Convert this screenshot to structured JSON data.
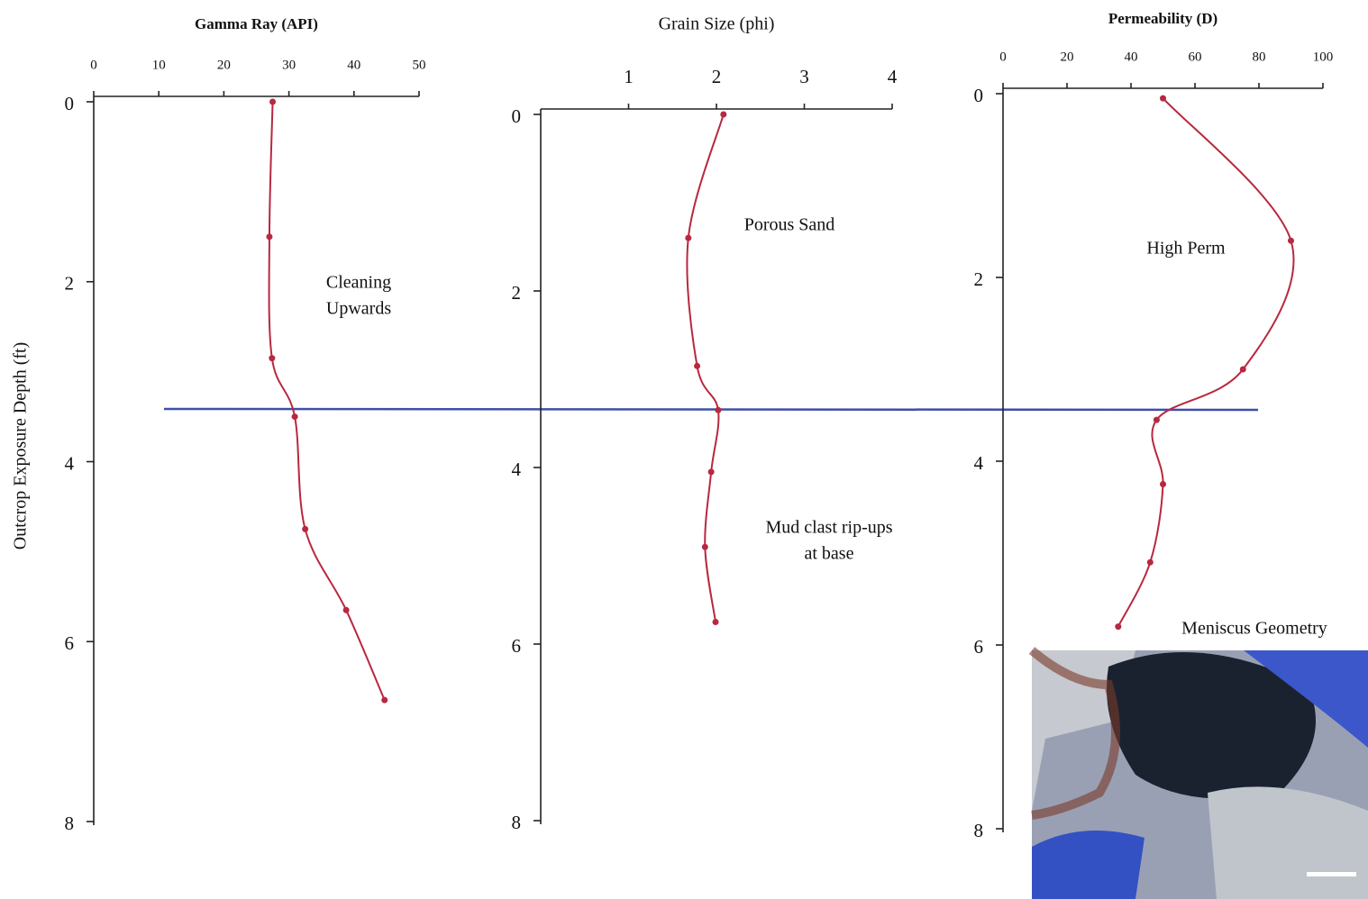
{
  "chart_data": [
    {
      "type": "line",
      "title": "Gamma Ray (API)",
      "ylabel": "Outcrop Exposure Depth (ft)",
      "xlim": [
        0,
        50
      ],
      "xticks": [
        0,
        10,
        20,
        30,
        40,
        50
      ],
      "ylim": [
        0,
        8
      ],
      "yticks": [
        0,
        2,
        4,
        6,
        8
      ],
      "y_inverted": true,
      "color": "#b8283f",
      "x": [
        27.5,
        27,
        27.4,
        30.9,
        32.5,
        38.8,
        44.7
      ],
      "y": [
        0,
        1.5,
        2.85,
        3.5,
        4.75,
        5.65,
        6.65
      ],
      "annotation": [
        "Cleaning",
        "Upwards"
      ]
    },
    {
      "type": "line",
      "title": "Grain Size (phi)",
      "xlim": [
        0,
        4
      ],
      "xticks": [
        1,
        2,
        3,
        4
      ],
      "ylim": [
        0,
        8
      ],
      "yticks": [
        0,
        2,
        4,
        6,
        8
      ],
      "y_inverted": true,
      "color": "#b8283f",
      "x": [
        2.08,
        1.68,
        1.78,
        2.02,
        1.94,
        1.87,
        1.99
      ],
      "y": [
        0,
        1.4,
        2.85,
        3.35,
        4.05,
        4.9,
        5.75
      ],
      "annotation": [
        "Porous Sand"
      ],
      "annotation2": [
        "Mud clast rip-ups",
        "at base"
      ]
    },
    {
      "type": "line",
      "title": "Permeability (D)",
      "xlim": [
        0,
        100
      ],
      "xticks": [
        0,
        20,
        40,
        60,
        80,
        100
      ],
      "ylim": [
        0,
        8
      ],
      "yticks": [
        0,
        2,
        4,
        6,
        8
      ],
      "y_inverted": true,
      "color": "#b8283f",
      "x": [
        50,
        90,
        75,
        48,
        50,
        46,
        36
      ],
      "y": [
        0.05,
        1.6,
        3.0,
        3.55,
        4.25,
        5.1,
        5.8
      ],
      "annotation": [
        "High Perm"
      ]
    }
  ],
  "inset_caption": "Meniscus Geometry"
}
